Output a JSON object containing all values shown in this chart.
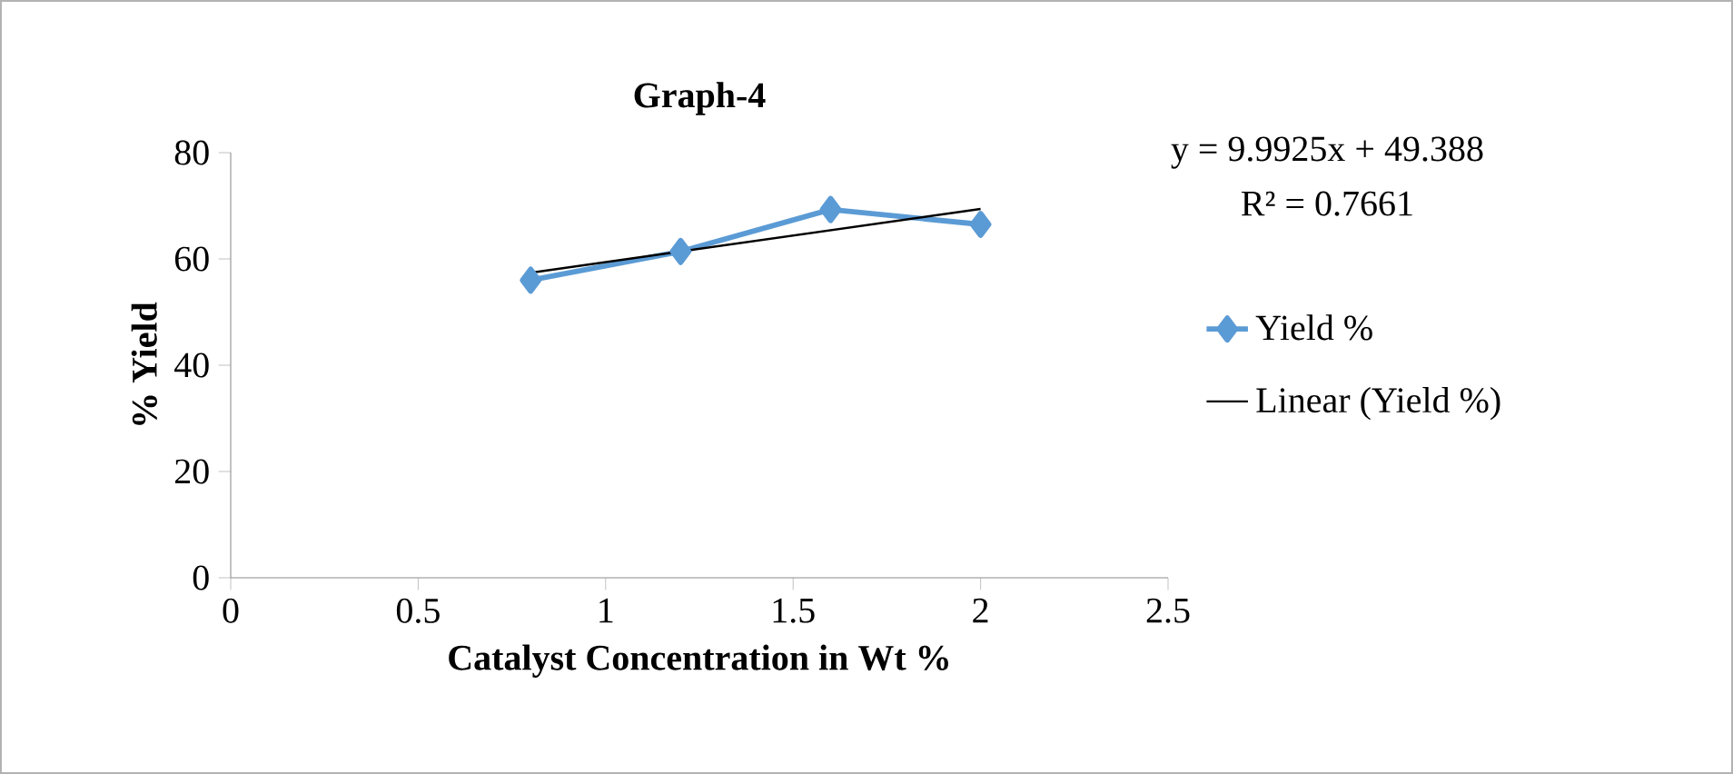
{
  "chart_data": {
    "type": "line",
    "title": "Graph-4",
    "xlabel": "Catalyst Concentration in Wt %",
    "ylabel": "% Yield",
    "xlim": [
      0,
      2.5
    ],
    "xticks": [
      0,
      0.5,
      1,
      1.5,
      2,
      2.5
    ],
    "ylim": [
      0,
      80
    ],
    "yticks": [
      0,
      20,
      40,
      60,
      80
    ],
    "series": [
      {
        "name": "Yield %",
        "color": "#5b9bd5",
        "x": [
          0.8,
          1.2,
          1.6,
          2
        ],
        "values": [
          56,
          61.4,
          69.3,
          66.5
        ],
        "marker": "diamond"
      },
      {
        "name": "Linear (Yield %)",
        "type": "line",
        "color": "#000000",
        "x": [
          0.8,
          2
        ],
        "values": [
          57.4,
          69.4
        ],
        "marker": "none"
      }
    ],
    "annotations": [
      "y = 9.9925x + 49.388",
      "R² = 0.7661"
    ],
    "legend": "right",
    "grid": false
  }
}
